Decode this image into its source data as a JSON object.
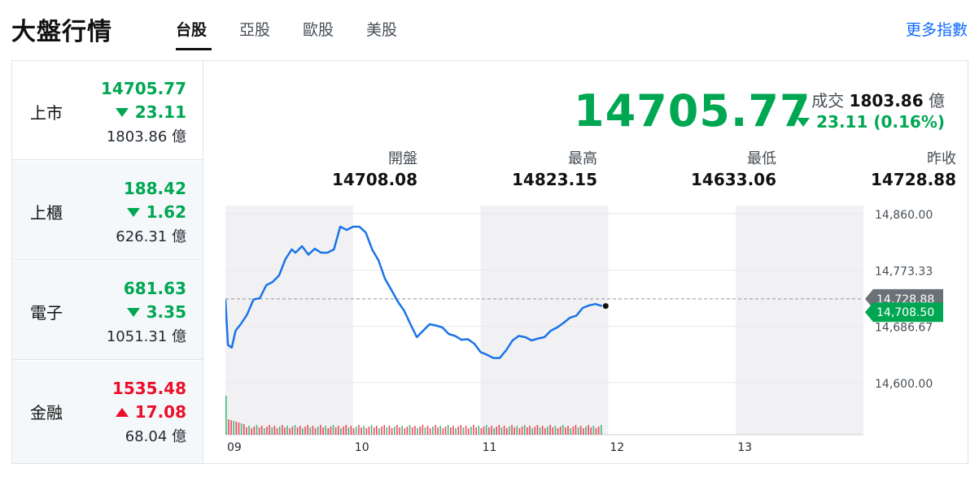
{
  "header": {
    "title": "大盤行情",
    "tabs": [
      {
        "label": "台股",
        "active": true
      },
      {
        "label": "亞股",
        "active": false
      },
      {
        "label": "歐股",
        "active": false
      },
      {
        "label": "美股",
        "active": false
      }
    ],
    "more_link": "更多指數"
  },
  "colors": {
    "down": "#00a753",
    "up": "#eb0f29",
    "link": "#0f69ff",
    "line": "#1a73e8"
  },
  "markets": [
    {
      "name": "上市",
      "value": "14705.77",
      "change": "23.11",
      "direction": "down",
      "volume": "1803.86 億"
    },
    {
      "name": "上櫃",
      "value": "188.42",
      "change": "1.62",
      "direction": "down",
      "volume": "626.31 億"
    },
    {
      "name": "電子",
      "value": "681.63",
      "change": "3.35",
      "direction": "down",
      "volume": "1051.31 億"
    },
    {
      "name": "金融",
      "value": "1535.48",
      "change": "17.08",
      "direction": "up",
      "volume": "68.04 億"
    }
  ],
  "summary": {
    "price": "14705.77",
    "turnover_label": "成交",
    "turnover_value": "1803.86",
    "turnover_unit": "億",
    "change": "23.11 (0.16%)",
    "stats": [
      {
        "label": "開盤",
        "value": "14708.08"
      },
      {
        "label": "最高",
        "value": "14823.15"
      },
      {
        "label": "最低",
        "value": "14633.06"
      },
      {
        "label": "昨收",
        "value": "14728.88"
      }
    ]
  },
  "chart_data": {
    "type": "line",
    "x_ticks": [
      "09",
      "10",
      "11",
      "12",
      "13"
    ],
    "y_ticks": [
      "14,860.00",
      "14,773.33",
      "14,686.67",
      "14,600.00"
    ],
    "ylim": [
      14600,
      14860
    ],
    "prev_close": 14728.88,
    "prev_close_label": "14,728.88",
    "last_label": "14,708.50",
    "last_value": 14708.5,
    "x_hours": [
      9.0,
      9.02,
      9.05,
      9.08,
      9.12,
      9.17,
      9.22,
      9.27,
      9.32,
      9.37,
      9.42,
      9.47,
      9.52,
      9.55,
      9.6,
      9.65,
      9.7,
      9.75,
      9.8,
      9.85,
      9.9,
      9.95,
      10.0,
      10.05,
      10.1,
      10.15,
      10.2,
      10.25,
      10.3,
      10.35,
      10.4,
      10.45,
      10.5,
      10.55,
      10.6,
      10.65,
      10.7,
      10.75,
      10.8,
      10.85,
      10.9,
      10.95,
      11.0,
      11.05,
      11.1,
      11.15,
      11.2,
      11.25,
      11.3,
      11.35,
      11.4,
      11.45,
      11.5,
      11.55,
      11.6,
      11.65,
      11.7,
      11.75,
      11.8,
      11.85,
      11.9,
      11.95
    ],
    "values": [
      14728,
      14658,
      14654,
      14680,
      14690,
      14705,
      14728,
      14730,
      14750,
      14755,
      14765,
      14790,
      14805,
      14800,
      14810,
      14797,
      14806,
      14800,
      14800,
      14805,
      14840,
      14835,
      14840,
      14840,
      14831,
      14805,
      14788,
      14760,
      14743,
      14725,
      14711,
      14690,
      14670,
      14680,
      14690,
      14688,
      14685,
      14675,
      14672,
      14666,
      14667,
      14660,
      14647,
      14643,
      14638,
      14638,
      14650,
      14665,
      14672,
      14670,
      14665,
      14668,
      14670,
      14680,
      14685,
      14692,
      14700,
      14703,
      14715,
      14719,
      14721,
      14718
    ],
    "volume_note": "volume bars (red/green) below price line"
  }
}
